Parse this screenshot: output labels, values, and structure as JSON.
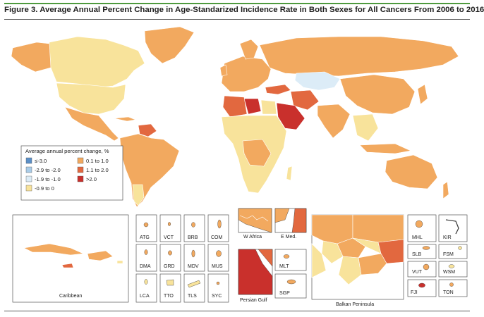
{
  "figure": {
    "title": "Figure 3. Average Annual Percent Change in Age-Standarized Incidence Rate in Both Sexes for All Cancers From 2006 to 2016"
  },
  "legend": {
    "title": "Average annual percent change, %",
    "items": [
      {
        "label": "≤-3.0",
        "color": "#5b8fc7"
      },
      {
        "label": "-2.9 to -2.0",
        "color": "#a9cce8"
      },
      {
        "label": "-1.9 to -1.0",
        "color": "#dcecf7"
      },
      {
        "label": "-0.9 to 0",
        "color": "#f8e39b"
      },
      {
        "label": "0.1 to 1.0",
        "color": "#f2a95f"
      },
      {
        "label": "1.1 to 2.0",
        "color": "#e2683f"
      },
      {
        "label": ">2.0",
        "color": "#c9302c"
      }
    ]
  },
  "insets": {
    "caribbean": "Caribbean",
    "small": [
      "ATG",
      "VCT",
      "BRB",
      "COM",
      "DMA",
      "GRD",
      "MDV",
      "MUS",
      "LCA",
      "TTO",
      "TLS",
      "SYC"
    ],
    "w_africa": "W Africa",
    "e_med": "E Med.",
    "persian_gulf": "Persian Gulf",
    "mlt": "MLT",
    "sgp": "SGP",
    "balkan": "Balkan Peninsula",
    "pacific": [
      "MHL",
      "KIR",
      "SLB",
      "FSM",
      "VUT",
      "WSM",
      "FJI",
      "TON"
    ]
  }
}
